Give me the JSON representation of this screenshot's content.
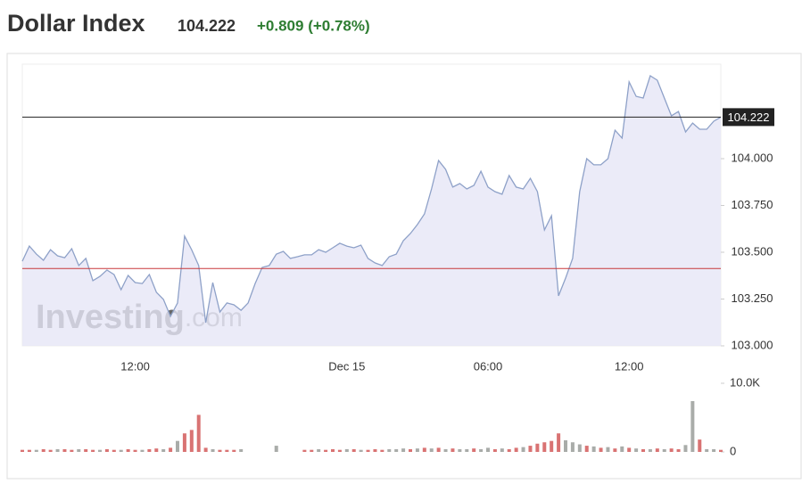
{
  "chart_data": [
    {
      "type": "area",
      "title": "Dollar Index",
      "change": "+0.809 (+0.78%)",
      "watermark": [
        "Investing",
        ".com"
      ],
      "line_color": "#8ea1c8",
      "fill_color": "#e6e6f6",
      "categories": [
        null,
        null,
        null,
        null,
        null,
        null,
        null,
        null,
        null,
        null,
        null,
        null,
        null,
        null,
        null,
        null,
        "12:00",
        null,
        null,
        null,
        null,
        null,
        null,
        null,
        null,
        null,
        null,
        null,
        null,
        null,
        null,
        null,
        null,
        null,
        null,
        null,
        null,
        null,
        null,
        null,
        null,
        null,
        null,
        null,
        null,
        null,
        "Dec 15",
        null,
        null,
        null,
        null,
        null,
        null,
        null,
        null,
        null,
        null,
        null,
        null,
        null,
        null,
        null,
        null,
        null,
        null,
        null,
        "06:00",
        null,
        null,
        null,
        null,
        null,
        null,
        null,
        null,
        null,
        null,
        null,
        null,
        null,
        null,
        null,
        null,
        null,
        null,
        null,
        "12:00",
        null,
        null,
        null,
        null,
        null,
        null,
        null,
        null,
        null,
        null,
        null,
        null,
        null
      ],
      "values": [
        103.452,
        103.533,
        103.49,
        103.457,
        103.514,
        103.481,
        103.471,
        103.519,
        103.429,
        103.467,
        103.348,
        103.371,
        103.405,
        103.381,
        103.3,
        103.376,
        103.338,
        103.333,
        103.381,
        103.286,
        103.248,
        103.157,
        103.229,
        103.586,
        103.514,
        103.429,
        103.124,
        103.338,
        103.181,
        103.229,
        103.219,
        103.19,
        103.229,
        103.333,
        103.419,
        103.429,
        103.49,
        103.505,
        103.467,
        103.476,
        103.486,
        103.486,
        103.514,
        103.5,
        103.524,
        103.548,
        103.533,
        103.524,
        103.538,
        103.467,
        103.443,
        103.429,
        103.476,
        103.49,
        103.562,
        103.6,
        103.648,
        103.705,
        103.838,
        103.99,
        103.943,
        103.848,
        103.867,
        103.838,
        103.857,
        103.933,
        103.848,
        103.824,
        103.81,
        103.91,
        103.848,
        103.838,
        103.895,
        103.824,
        103.619,
        103.695,
        103.267,
        103.362,
        103.467,
        103.824,
        104.0,
        103.967,
        103.967,
        104.0,
        104.152,
        104.11,
        104.41,
        104.333,
        104.324,
        104.443,
        104.419,
        104.324,
        104.229,
        104.252,
        104.143,
        104.19,
        104.157,
        104.157,
        104.2,
        104.222
      ],
      "ylim": [
        103.0,
        104.5
      ],
      "yticks": [
        {
          "value": 103.0,
          "label": "103.000"
        },
        {
          "value": 103.25,
          "label": "103.250"
        },
        {
          "value": 103.5,
          "label": "103.500"
        },
        {
          "value": 103.75,
          "label": "103.750"
        },
        {
          "value": 104.0,
          "label": "104.000"
        }
      ],
      "reference_lines": [
        {
          "value": 104.222,
          "label": "104.222",
          "color": "#222222"
        },
        {
          "value": 103.413,
          "color": "#c8393b"
        }
      ]
    },
    {
      "type": "bar",
      "values": [
        300,
        300,
        300,
        400,
        300,
        400,
        400,
        300,
        400,
        400,
        300,
        300,
        400,
        300,
        300,
        400,
        300,
        300,
        400,
        500,
        400,
        600,
        1600,
        2700,
        3200,
        5400,
        600,
        400,
        300,
        300,
        300,
        400,
        null,
        null,
        null,
        null,
        900,
        null,
        null,
        null,
        300,
        300,
        400,
        300,
        400,
        300,
        400,
        400,
        300,
        300,
        400,
        300,
        400,
        400,
        500,
        400,
        500,
        600,
        500,
        600,
        400,
        500,
        400,
        400,
        500,
        400,
        600,
        400,
        500,
        400,
        600,
        700,
        900,
        1200,
        1400,
        1600,
        2700,
        1700,
        1400,
        1100,
        900,
        800,
        600,
        700,
        500,
        800,
        600,
        500,
        400,
        400,
        500,
        400,
        500,
        400,
        1000,
        7400,
        1800,
        400,
        400,
        300
      ],
      "colors": [
        "#d97373",
        "#d97373",
        "#a9aca9",
        "#d97373",
        "#d97373",
        "#a9aca9",
        "#d97373",
        "#d97373",
        "#a9aca9",
        "#d97373",
        "#d97373",
        "#a9aca9",
        "#d97373",
        "#d97373",
        "#a9aca9",
        "#d97373",
        "#d97373",
        "#a9aca9",
        "#d97373",
        "#d97373",
        "#a9aca9",
        "#d97373",
        "#a9aca9",
        "#d97373",
        "#d97373",
        "#d97373",
        "#d97373",
        "#a9aca9",
        "#d97373",
        "#d97373",
        "#d97373",
        "#a9aca9",
        "#a9aca9",
        "#a9aca9",
        "#a9aca9",
        "#a9aca9",
        "#a9aca9",
        "#a9aca9",
        "#a9aca9",
        "#a9aca9",
        "#d97373",
        "#d97373",
        "#a9aca9",
        "#d97373",
        "#d97373",
        "#d97373",
        "#a9aca9",
        "#d97373",
        "#a9aca9",
        "#d97373",
        "#d97373",
        "#d97373",
        "#a9aca9",
        "#a9aca9",
        "#a9aca9",
        "#d97373",
        "#a9aca9",
        "#d97373",
        "#a9aca9",
        "#d97373",
        "#a9aca9",
        "#d97373",
        "#a9aca9",
        "#a9aca9",
        "#d97373",
        "#a9aca9",
        "#a9aca9",
        "#d97373",
        "#a9aca9",
        "#d97373",
        "#d97373",
        "#a9aca9",
        "#d97373",
        "#d97373",
        "#d97373",
        "#d97373",
        "#d97373",
        "#a9aca9",
        "#a9aca9",
        "#a9aca9",
        "#d97373",
        "#a9aca9",
        "#d97373",
        "#a9aca9",
        "#d97373",
        "#a9aca9",
        "#d97373",
        "#a9aca9",
        "#d97373",
        "#a9aca9",
        "#d97373",
        "#a9aca9",
        "#d97373",
        "#d97373",
        "#a9aca9",
        "#a9aca9",
        "#d97373",
        "#a9aca9",
        "#a9aca9",
        "#d97373"
      ],
      "ylim": [
        0,
        10000
      ],
      "yticks": [
        0,
        {
          "value": 10000,
          "label": "10.0K"
        }
      ]
    }
  ]
}
